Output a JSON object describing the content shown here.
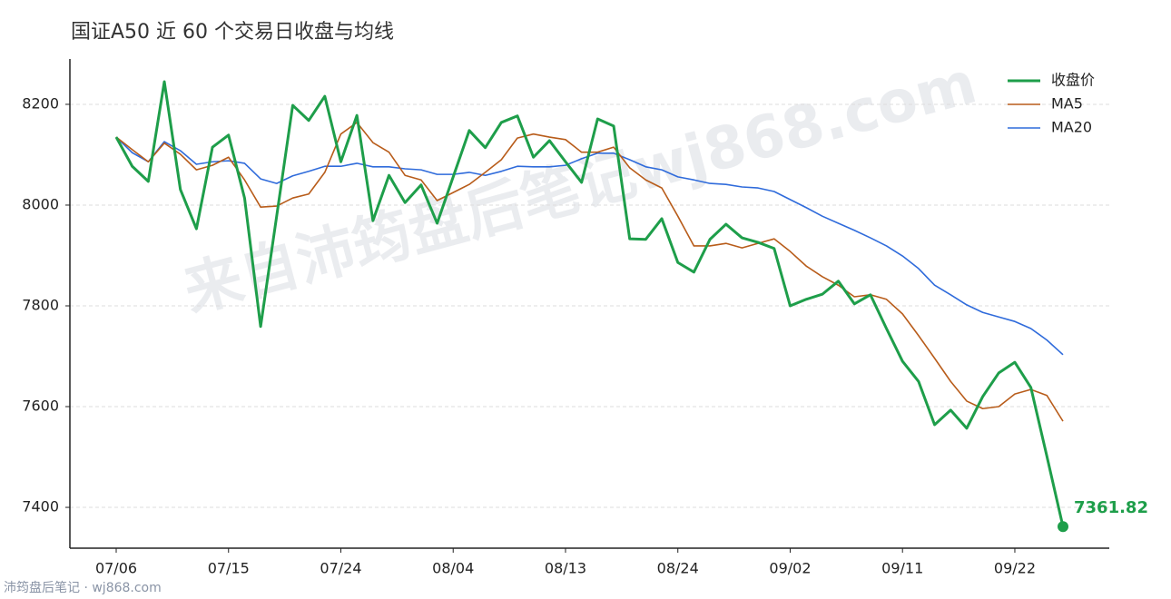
{
  "chart_data": {
    "type": "line",
    "title": "国证A50 近 60 个交易日收盘与均线",
    "watermark": "来自沛筠盘后笔记wj868.com",
    "footer": "沛筠盘后笔记 · wj868.com",
    "categories": [
      "07/06",
      null,
      null,
      null,
      null,
      null,
      null,
      "07/15",
      null,
      null,
      null,
      null,
      null,
      null,
      "07/24",
      null,
      null,
      null,
      null,
      null,
      null,
      "08/04",
      null,
      null,
      null,
      null,
      null,
      null,
      "08/13",
      null,
      null,
      null,
      null,
      null,
      null,
      "08/24",
      null,
      null,
      null,
      null,
      null,
      null,
      "09/02",
      null,
      null,
      null,
      null,
      null,
      null,
      "09/11",
      null,
      null,
      null,
      null,
      null,
      null,
      "09/22",
      null,
      null,
      null
    ],
    "series": [
      {
        "name": "收盘价",
        "color": "#1e9e4a",
        "width": 3,
        "values": [
          8135,
          8077,
          8047,
          8245,
          8031,
          7953,
          8115,
          8139,
          8014,
          7759,
          7978,
          8198,
          8168,
          8216,
          8086,
          8178,
          7969,
          8059,
          8005,
          8040,
          7964,
          8056,
          8148,
          8114,
          8164,
          8177,
          8095,
          8128,
          8086,
          8045,
          8171,
          8157,
          7933,
          7932,
          7973,
          7886,
          7867,
          7932,
          7962,
          7935,
          7926,
          7914,
          7800,
          7813,
          7823,
          7849,
          7804,
          7822,
          7755,
          7690,
          7650,
          7564,
          7593,
          7557,
          7620,
          7667,
          7688,
          7638,
          7501,
          7361.82
        ]
      },
      {
        "name": "MA5",
        "color": "#b85c1a",
        "width": 1.6,
        "values": [
          8135,
          8110,
          8086,
          8123,
          8101,
          8070,
          8079,
          8095,
          8050,
          7996,
          7998,
          8014,
          8022,
          8065,
          8141,
          8164,
          8124,
          8105,
          8059,
          8050,
          8009,
          8025,
          8041,
          8065,
          8090,
          8133,
          8141,
          8135,
          8130,
          8105,
          8105,
          8115,
          8074,
          8050,
          8034,
          7978,
          7919,
          7919,
          7924,
          7915,
          7924,
          7933,
          7908,
          7879,
          7858,
          7841,
          7818,
          7822,
          7813,
          7784,
          7741,
          7696,
          7650,
          7611,
          7596,
          7600,
          7625,
          7634,
          7622,
          7571
        ]
      },
      {
        "name": "MA20",
        "color": "#2f6bdb",
        "width": 1.6,
        "values": [
          8135,
          8104,
          8086,
          8126,
          8108,
          8081,
          8086,
          8088,
          8083,
          8052,
          8043,
          8058,
          8067,
          8077,
          8077,
          8083,
          8076,
          8076,
          8072,
          8070,
          8061,
          8061,
          8065,
          8059,
          8067,
          8077,
          8076,
          8076,
          8079,
          8092,
          8103,
          8103,
          8090,
          8076,
          8070,
          8056,
          8050,
          8043,
          8041,
          8036,
          8034,
          8027,
          8011,
          7995,
          7978,
          7964,
          7950,
          7935,
          7919,
          7899,
          7874,
          7841,
          7822,
          7802,
          7787,
          7778,
          7769,
          7755,
          7732,
          7703
        ]
      }
    ],
    "ylim": [
      7319,
      8290
    ],
    "yticks": [
      7400,
      7600,
      7800,
      8000,
      8200
    ],
    "grid": true,
    "legend": "upper right"
  }
}
